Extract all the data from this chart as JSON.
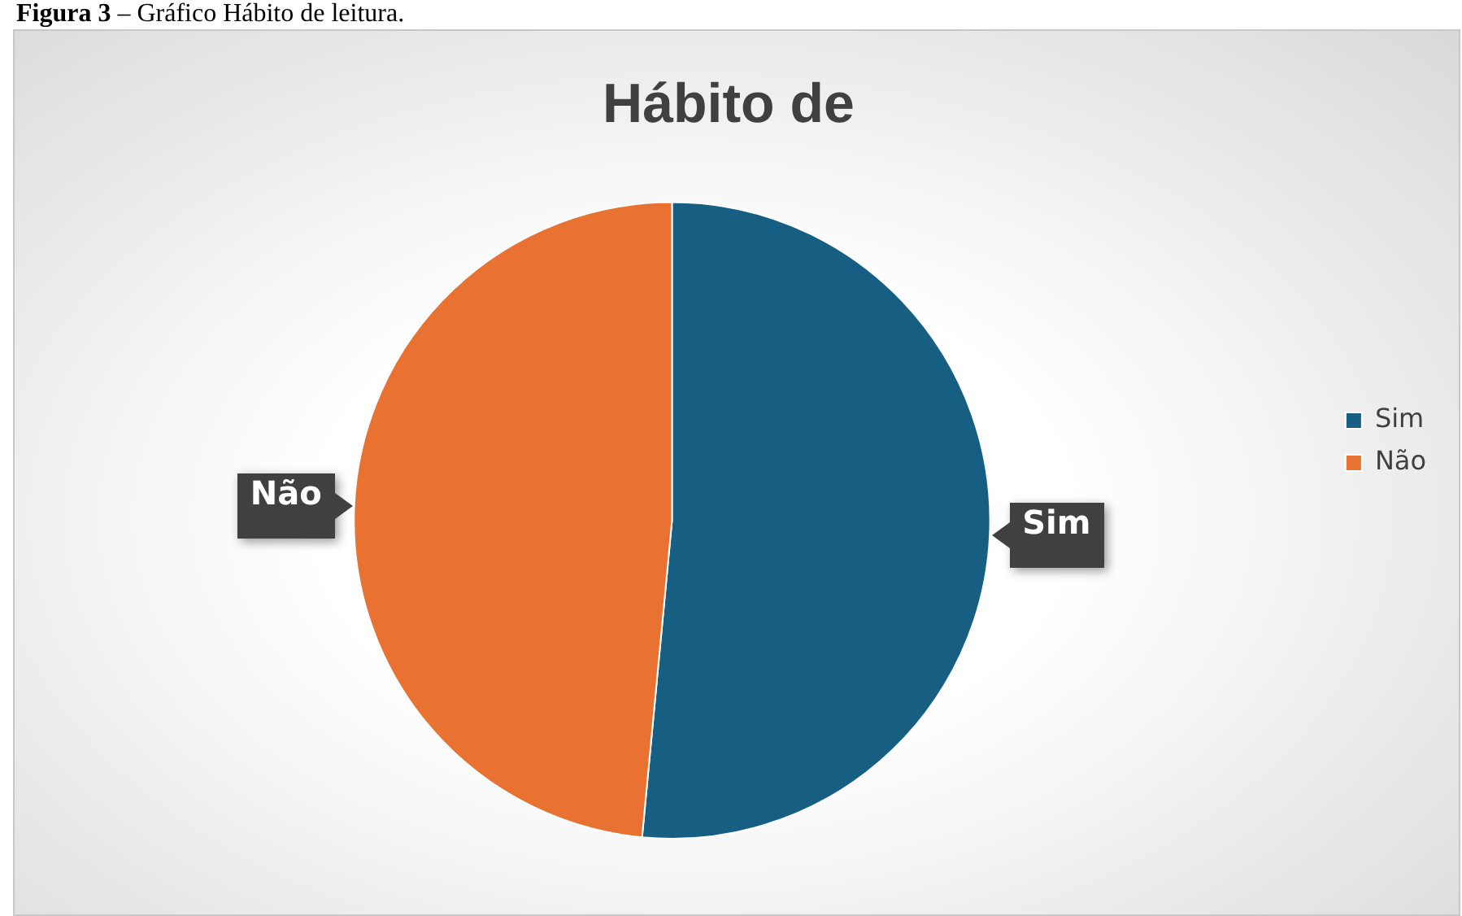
{
  "chart_data": {
    "type": "pie",
    "title": "Hábito de",
    "annotations": [
      "Figura 3 – Gráfico Hábito de leitura."
    ],
    "categories": [
      "Sim",
      "Não"
    ],
    "values": [
      51.5,
      48.5
    ],
    "colors": [
      "#175f82",
      "#e97132"
    ],
    "legend": "right"
  }
}
